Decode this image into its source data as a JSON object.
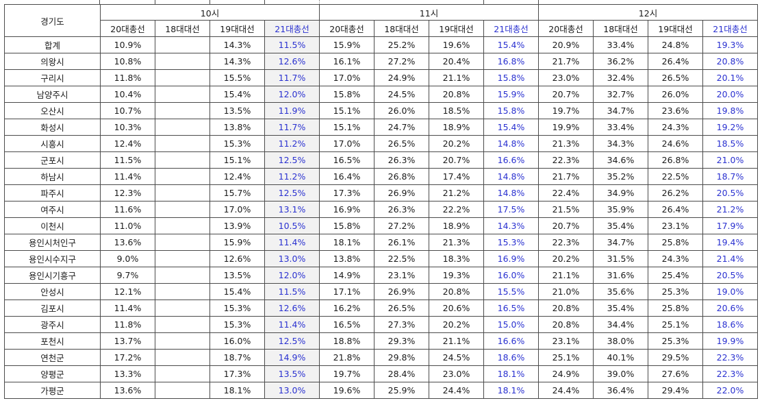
{
  "table": {
    "region_header": "경기도",
    "hours": [
      "10시",
      "11시",
      "12시"
    ],
    "election_labels": [
      "20대총선",
      "18대대선",
      "19대대선",
      "21대총선"
    ],
    "rows": [
      {
        "region": "합계",
        "h10": [
          "10.9%",
          "",
          "14.3%",
          "11.5%"
        ],
        "h11": [
          "15.9%",
          "25.2%",
          "19.6%",
          "15.4%"
        ],
        "h12": [
          "20.9%",
          "33.4%",
          "24.8%",
          "19.3%"
        ]
      },
      {
        "region": "의왕시",
        "h10": [
          "10.8%",
          "",
          "14.3%",
          "12.6%"
        ],
        "h11": [
          "16.1%",
          "27.2%",
          "20.4%",
          "16.8%"
        ],
        "h12": [
          "21.7%",
          "36.2%",
          "26.4%",
          "20.8%"
        ]
      },
      {
        "region": "구리시",
        "h10": [
          "11.8%",
          "",
          "15.5%",
          "11.7%"
        ],
        "h11": [
          "17.0%",
          "24.9%",
          "21.1%",
          "15.8%"
        ],
        "h12": [
          "23.0%",
          "32.4%",
          "26.5%",
          "20.1%"
        ]
      },
      {
        "region": "남양주시",
        "h10": [
          "10.4%",
          "",
          "15.4%",
          "12.0%"
        ],
        "h11": [
          "15.8%",
          "24.5%",
          "20.8%",
          "15.9%"
        ],
        "h12": [
          "20.7%",
          "32.7%",
          "26.0%",
          "20.0%"
        ]
      },
      {
        "region": "오산시",
        "h10": [
          "10.7%",
          "",
          "13.5%",
          "11.9%"
        ],
        "h11": [
          "15.1%",
          "26.0%",
          "18.5%",
          "15.8%"
        ],
        "h12": [
          "19.7%",
          "34.7%",
          "23.6%",
          "19.8%"
        ]
      },
      {
        "region": "화성시",
        "h10": [
          "10.3%",
          "",
          "13.8%",
          "11.7%"
        ],
        "h11": [
          "15.1%",
          "24.7%",
          "18.9%",
          "15.4%"
        ],
        "h12": [
          "19.9%",
          "33.4%",
          "24.3%",
          "19.2%"
        ]
      },
      {
        "region": "시흥시",
        "h10": [
          "12.4%",
          "",
          "15.3%",
          "11.2%"
        ],
        "h11": [
          "17.0%",
          "26.5%",
          "20.2%",
          "14.8%"
        ],
        "h12": [
          "21.3%",
          "34.3%",
          "24.6%",
          "18.5%"
        ]
      },
      {
        "region": "군포시",
        "h10": [
          "11.5%",
          "",
          "15.1%",
          "12.5%"
        ],
        "h11": [
          "16.5%",
          "26.3%",
          "20.7%",
          "16.6%"
        ],
        "h12": [
          "22.3%",
          "34.6%",
          "26.8%",
          "21.0%"
        ]
      },
      {
        "region": "하남시",
        "h10": [
          "11.4%",
          "",
          "12.4%",
          "11.2%"
        ],
        "h11": [
          "16.4%",
          "26.8%",
          "17.4%",
          "14.8%"
        ],
        "h12": [
          "21.7%",
          "35.2%",
          "22.5%",
          "18.7%"
        ]
      },
      {
        "region": "파주시",
        "h10": [
          "12.3%",
          "",
          "15.7%",
          "12.5%"
        ],
        "h11": [
          "17.3%",
          "26.9%",
          "21.2%",
          "14.8%"
        ],
        "h12": [
          "22.4%",
          "34.9%",
          "26.2%",
          "20.5%"
        ]
      },
      {
        "region": "여주시",
        "h10": [
          "11.6%",
          "",
          "17.0%",
          "13.1%"
        ],
        "h11": [
          "16.9%",
          "26.3%",
          "22.2%",
          "17.5%"
        ],
        "h12": [
          "21.5%",
          "35.9%",
          "26.4%",
          "21.2%"
        ]
      },
      {
        "region": "이천시",
        "h10": [
          "11.0%",
          "",
          "13.9%",
          "10.5%"
        ],
        "h11": [
          "15.8%",
          "27.2%",
          "18.9%",
          "14.3%"
        ],
        "h12": [
          "20.7%",
          "35.4%",
          "23.1%",
          "17.9%"
        ]
      },
      {
        "region": "용인시처인구",
        "h10": [
          "13.6%",
          "",
          "15.9%",
          "11.4%"
        ],
        "h11": [
          "18.1%",
          "26.1%",
          "21.3%",
          "15.3%"
        ],
        "h12": [
          "22.3%",
          "34.7%",
          "25.8%",
          "19.4%"
        ]
      },
      {
        "region": "용인시수지구",
        "h10": [
          "9.0%",
          "",
          "12.6%",
          "13.0%"
        ],
        "h11": [
          "13.8%",
          "22.5%",
          "18.3%",
          "16.9%"
        ],
        "h12": [
          "20.2%",
          "31.5%",
          "24.3%",
          "21.4%"
        ]
      },
      {
        "region": "용인시기흥구",
        "h10": [
          "9.7%",
          "",
          "13.5%",
          "12.0%"
        ],
        "h11": [
          "14.9%",
          "23.1%",
          "19.3%",
          "16.0%"
        ],
        "h12": [
          "21.1%",
          "31.6%",
          "25.4%",
          "20.5%"
        ]
      },
      {
        "region": "안성시",
        "h10": [
          "12.1%",
          "",
          "15.4%",
          "11.5%"
        ],
        "h11": [
          "17.1%",
          "26.9%",
          "20.8%",
          "15.5%"
        ],
        "h12": [
          "21.0%",
          "35.6%",
          "25.3%",
          "19.0%"
        ]
      },
      {
        "region": "김포시",
        "h10": [
          "11.4%",
          "",
          "15.3%",
          "12.6%"
        ],
        "h11": [
          "16.2%",
          "26.5%",
          "20.6%",
          "16.5%"
        ],
        "h12": [
          "20.8%",
          "35.4%",
          "25.8%",
          "20.6%"
        ]
      },
      {
        "region": "광주시",
        "h10": [
          "11.8%",
          "",
          "15.3%",
          "11.4%"
        ],
        "h11": [
          "16.5%",
          "27.3%",
          "20.2%",
          "15.0%"
        ],
        "h12": [
          "20.8%",
          "34.4%",
          "25.1%",
          "18.6%"
        ]
      },
      {
        "region": "포천시",
        "h10": [
          "13.7%",
          "",
          "16.0%",
          "12.5%"
        ],
        "h11": [
          "18.8%",
          "29.3%",
          "21.1%",
          "16.6%"
        ],
        "h12": [
          "23.1%",
          "38.0%",
          "25.3%",
          "19.9%"
        ]
      },
      {
        "region": "연천군",
        "h10": [
          "17.2%",
          "",
          "18.7%",
          "14.9%"
        ],
        "h11": [
          "21.8%",
          "29.8%",
          "24.5%",
          "18.6%"
        ],
        "h12": [
          "25.1%",
          "40.1%",
          "29.5%",
          "22.3%"
        ]
      },
      {
        "region": "양평군",
        "h10": [
          "13.3%",
          "",
          "17.3%",
          "13.5%"
        ],
        "h11": [
          "19.7%",
          "28.4%",
          "23.0%",
          "18.1%"
        ],
        "h12": [
          "24.9%",
          "39.0%",
          "27.6%",
          "22.3%"
        ]
      },
      {
        "region": "가평군",
        "h10": [
          "13.6%",
          "",
          "18.1%",
          "13.0%"
        ],
        "h11": [
          "19.6%",
          "25.9%",
          "24.4%",
          "18.1%"
        ],
        "h12": [
          "24.4%",
          "36.4%",
          "29.4%",
          "22.0%"
        ]
      }
    ]
  },
  "colors": {
    "highlight_text": "#2a31d0",
    "highlight_column_bg": "#f2f2f2",
    "border": "#4a4a4a"
  }
}
